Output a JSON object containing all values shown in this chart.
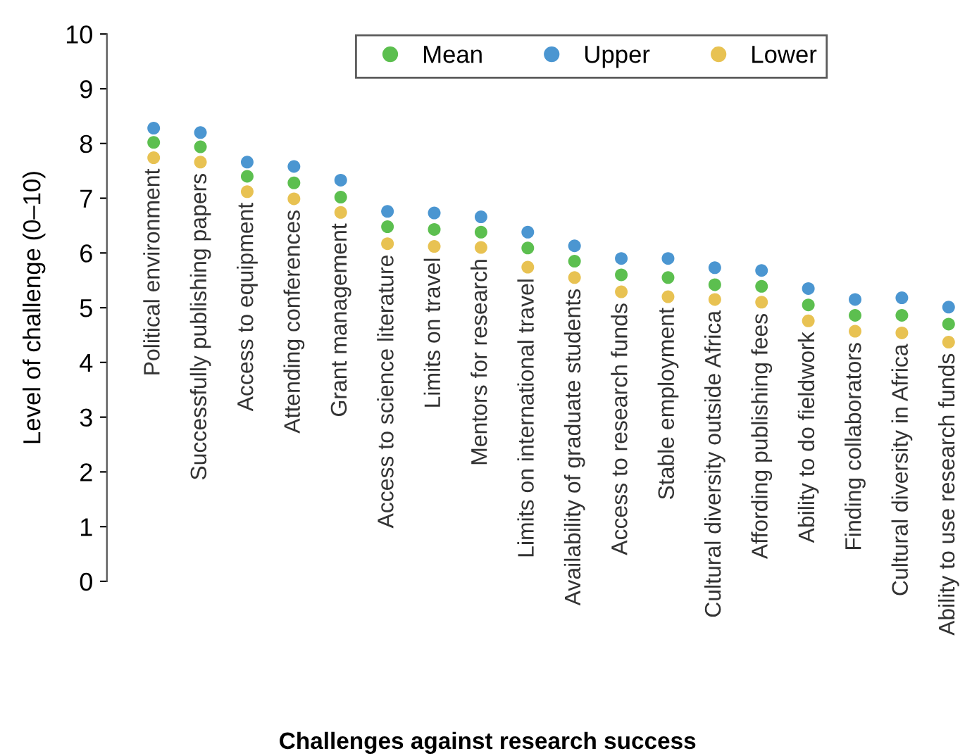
{
  "chart_data": {
    "type": "scatter",
    "xlabel": "Challenges against research success",
    "ylabel": "Level of challenge (0–10)",
    "categories": [
      "Political environment",
      "Successfully publishing papers",
      "Access to equipment",
      "Attending conferences",
      "Grant management",
      "Access to science literature",
      "Limits on travel",
      "Mentors for research",
      "Limits on international travel",
      "Availability of graduate students",
      "Access to research funds",
      "Stable employment",
      "Cultural diversity outside Africa",
      "Affording publishing fees",
      "Ability to do fieldwork",
      "Finding collaborators",
      "Cultural diversity in Africa",
      "Ability to use research funds"
    ],
    "series": [
      {
        "name": "Mean",
        "color": "#5cbf4f",
        "values": [
          8.02,
          7.94,
          7.4,
          7.28,
          7.02,
          6.48,
          6.43,
          6.38,
          6.09,
          5.85,
          5.6,
          5.55,
          5.42,
          5.39,
          5.05,
          4.86,
          4.86,
          4.7
        ]
      },
      {
        "name": "Upper",
        "color": "#4b96d1",
        "values": [
          8.28,
          8.2,
          7.66,
          7.58,
          7.33,
          6.76,
          6.73,
          6.66,
          6.38,
          6.13,
          5.9,
          5.9,
          5.73,
          5.68,
          5.35,
          5.15,
          5.18,
          5.01
        ]
      },
      {
        "name": "Lower",
        "color": "#e8c252",
        "values": [
          7.74,
          7.66,
          7.12,
          6.99,
          6.74,
          6.17,
          6.12,
          6.1,
          5.74,
          5.55,
          5.29,
          5.2,
          5.15,
          5.1,
          4.76,
          4.57,
          4.54,
          4.37
        ]
      }
    ],
    "ylim": [
      0,
      10
    ],
    "yticks": [
      0,
      1,
      2,
      3,
      4,
      5,
      6,
      7,
      8,
      9,
      10
    ],
    "grid": false,
    "legend": "top",
    "marker": "circle"
  }
}
